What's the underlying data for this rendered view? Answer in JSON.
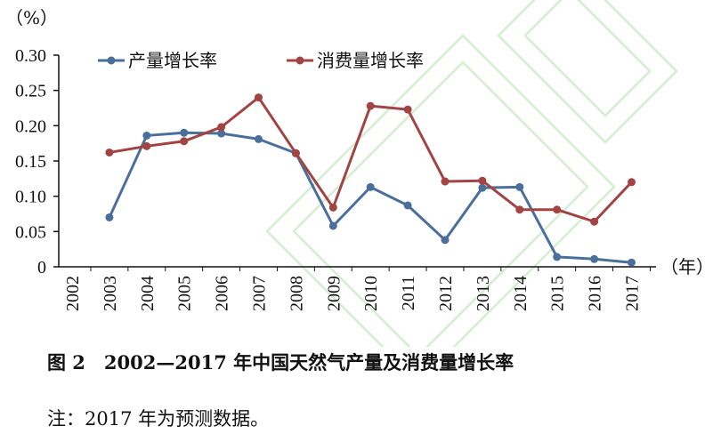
{
  "chart_data": {
    "type": "line",
    "categories": [
      "2002",
      "2003",
      "2004",
      "2005",
      "2006",
      "2007",
      "2008",
      "2009",
      "2010",
      "2011",
      "2012",
      "2013",
      "2014",
      "2015",
      "2016",
      "2017"
    ],
    "series": [
      {
        "name": "产量增长率",
        "color": "#4a6f9b",
        "values": [
          null,
          0.07,
          0.186,
          0.19,
          0.189,
          0.181,
          0.161,
          0.058,
          0.113,
          0.087,
          0.038,
          0.112,
          0.113,
          0.014,
          0.011,
          0.006
        ]
      },
      {
        "name": "消费量增长率",
        "color": "#a24444",
        "values": [
          null,
          0.162,
          0.171,
          0.178,
          0.198,
          0.24,
          0.161,
          0.084,
          0.228,
          0.223,
          0.121,
          0.122,
          0.081,
          0.081,
          0.064,
          0.12
        ]
      }
    ],
    "ylim": [
      0,
      0.3
    ],
    "yticks": [
      "0",
      "0.05",
      "0.10",
      "0.15",
      "0.20",
      "0.25",
      "0.30"
    ],
    "y_unit": "（%）",
    "x_unit": "（年）",
    "legend_position": "top"
  },
  "caption": "图 2　2002—2017 年中国天然气产量及消费量增长率",
  "note": "注：2017 年为预测数据。"
}
